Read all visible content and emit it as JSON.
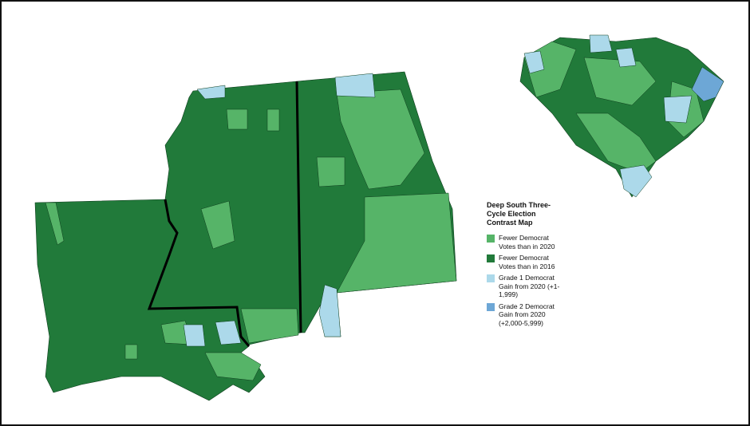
{
  "legend": {
    "title": "Deep South Three-Cycle Election Contrast Map",
    "items": [
      {
        "label": "Fewer Democrat Votes than in 2020",
        "color": "#56b468"
      },
      {
        "label": "Fewer Democrat Votes than in 2016",
        "color": "#217a3a"
      },
      {
        "label": "Grade 1 Democrat Gain from 2020 (+1-1,999)",
        "color": "#acd9ea"
      },
      {
        "label": "Grade 2 Democrat Gain from 2020 (+2,000-5,999)",
        "color": "#6da7d6"
      }
    ]
  }
}
